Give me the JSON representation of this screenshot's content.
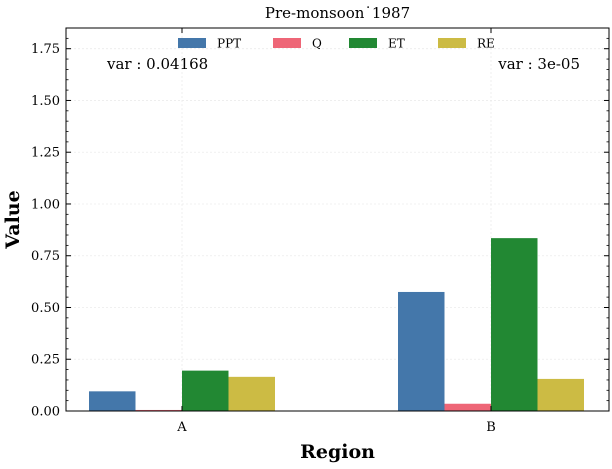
{
  "chart_data": {
    "type": "bar",
    "title": "Pre-monsoon˙1987",
    "xlabel": "Region",
    "ylabel": "Value",
    "categories": [
      "A",
      "B"
    ],
    "series": [
      {
        "name": "PPT",
        "color": "#4477aa",
        "values": [
          0.095,
          0.575
        ]
      },
      {
        "name": "Q",
        "color": "#ee6677",
        "values": [
          0.005,
          0.035
        ]
      },
      {
        "name": "ET",
        "color": "#228833",
        "values": [
          0.195,
          0.835
        ]
      },
      {
        "name": "RE",
        "color": "#ccbb44",
        "values": [
          0.165,
          0.155
        ]
      }
    ],
    "ylim": [
      0,
      1.85
    ],
    "yticks": [
      0.0,
      0.25,
      0.5,
      0.75,
      1.0,
      1.25,
      1.5,
      1.75
    ],
    "ytick_labels": [
      "0.00",
      "0.25",
      "0.50",
      "0.75",
      "1.00",
      "1.25",
      "1.50",
      "1.75"
    ],
    "grid": true,
    "legend_position": "top-center",
    "annotations": [
      "var : 0.04168",
      "var : 3e-05"
    ]
  }
}
